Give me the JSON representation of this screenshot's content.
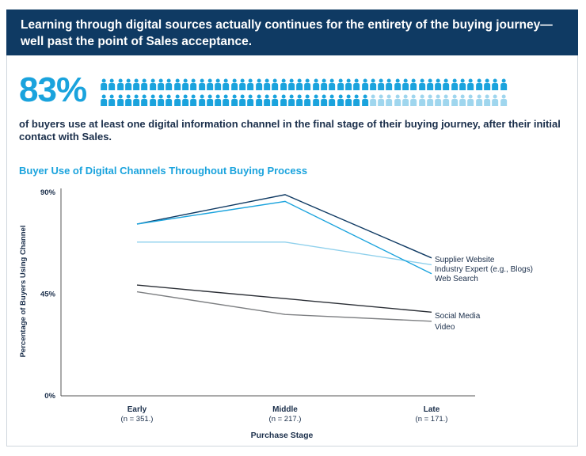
{
  "header": {
    "title": "Learning through digital sources actually continues for the entirety of the buying journey—well past the point of Sales acceptance."
  },
  "stat": {
    "value": "83%",
    "description": "of buyers use at least one digital information channel in the final stage of their buying journey, after their initial contact with Sales.",
    "pictogram": {
      "total": 100,
      "highlighted": 83,
      "color_on": "#1aa3dd",
      "color_off": "#9fd6ee"
    }
  },
  "chart_data": {
    "type": "line",
    "title": "Buyer Use of Digital Channels Throughout Buying Process",
    "xlabel": "Purchase Stage",
    "ylabel": "Percentage of Buyers Using Channel",
    "ylim": [
      0,
      90
    ],
    "yticks": [
      "0%",
      "45%",
      "90%"
    ],
    "ytick_values": [
      0,
      45,
      90
    ],
    "grid": false,
    "categories": [
      "Early",
      "Middle",
      "Late"
    ],
    "category_notes": [
      "(n = 351.)",
      "(n = 217.)",
      "(n = 171.)"
    ],
    "series": [
      {
        "name": "Supplier Website",
        "values": [
          76,
          89,
          61
        ],
        "color": "#0f3a63"
      },
      {
        "name": "Industry Expert (e.g., Blogs)",
        "values": [
          68,
          68,
          58
        ],
        "color": "#8fd0ec"
      },
      {
        "name": "Web Search",
        "values": [
          76,
          86,
          54
        ],
        "color": "#1aa3dd"
      },
      {
        "name": "Social Media",
        "values": [
          49,
          43,
          37
        ],
        "color": "#2b2f36"
      },
      {
        "name": "Video",
        "values": [
          46,
          36,
          33
        ],
        "color": "#7d7f82"
      }
    ]
  }
}
